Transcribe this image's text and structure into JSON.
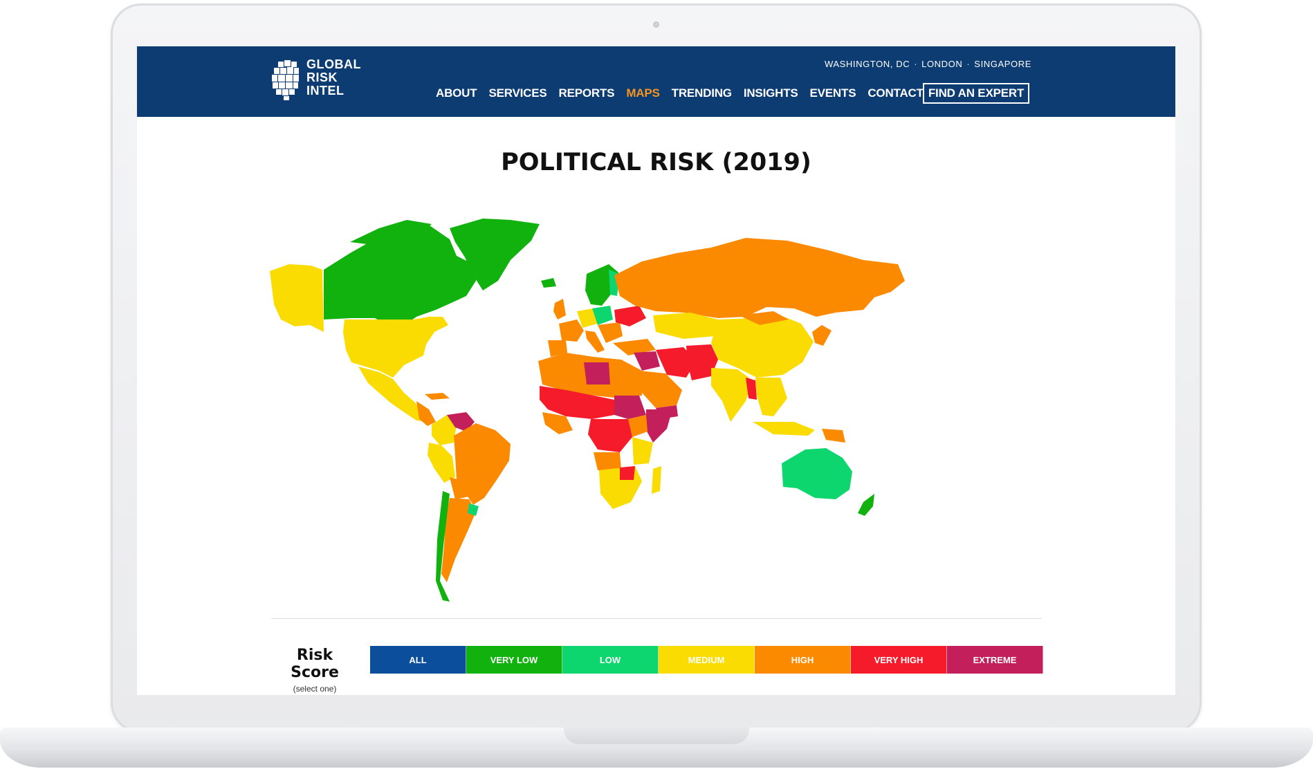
{
  "header": {
    "logo_lines": [
      "GLOBAL",
      "RISK",
      "INTEL"
    ],
    "offices": [
      "WASHINGTON, DC",
      "LONDON",
      "SINGAPORE"
    ],
    "nav": [
      {
        "label": "ABOUT",
        "active": false
      },
      {
        "label": "SERVICES",
        "active": false
      },
      {
        "label": "REPORTS",
        "active": false
      },
      {
        "label": "MAPS",
        "active": true
      },
      {
        "label": "TRENDING",
        "active": false
      },
      {
        "label": "INSIGHTS",
        "active": false
      },
      {
        "label": "EVENTS",
        "active": false
      },
      {
        "label": "CONTACT",
        "active": false
      }
    ],
    "cta": "FIND AN EXPERT"
  },
  "page": {
    "title": "POLITICAL RISK (2019)"
  },
  "legend": {
    "label": "Risk Score",
    "sublabel": "(select one)",
    "items": [
      {
        "label": "ALL",
        "color": "#0b4f9c"
      },
      {
        "label": "VERY LOW",
        "color": "#11b20e"
      },
      {
        "label": "LOW",
        "color": "#0ed66f"
      },
      {
        "label": "MEDIUM",
        "color": "#fadc03"
      },
      {
        "label": "HIGH",
        "color": "#fb8a00"
      },
      {
        "label": "VERY HIGH",
        "color": "#f51b2b"
      },
      {
        "label": "EXTREME",
        "color": "#c3205b"
      }
    ]
  },
  "colors": {
    "header_bg": "#0d3c73",
    "active_nav": "#f7941d"
  }
}
